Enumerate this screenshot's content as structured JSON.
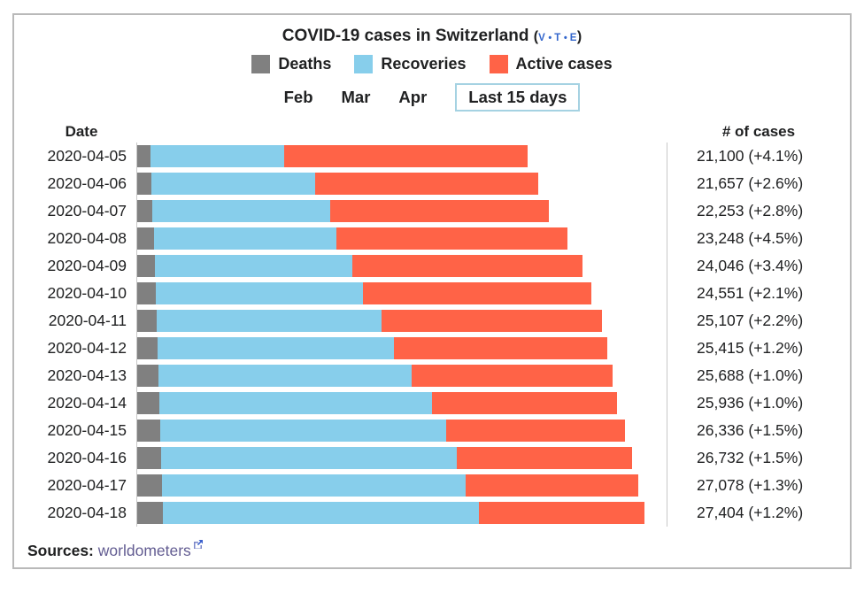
{
  "title": {
    "text": "COVID-19 cases in Switzerland",
    "vte_open": "(",
    "vte_close": ")",
    "vte": [
      "v",
      "t",
      "e"
    ]
  },
  "legend": [
    {
      "label": "Deaths",
      "color": "#808080"
    },
    {
      "label": "Recoveries",
      "color": "#87CEEB"
    },
    {
      "label": "Active cases",
      "color": "#FF6347"
    }
  ],
  "tabs": [
    {
      "label": "Feb",
      "selected": false
    },
    {
      "label": "Mar",
      "selected": false
    },
    {
      "label": "Apr",
      "selected": false
    },
    {
      "label": "Last 15 days",
      "selected": true
    }
  ],
  "columns": {
    "date": "Date",
    "cases": "# of cases"
  },
  "chart_data": {
    "type": "bar",
    "orientation": "horizontal",
    "stacked": true,
    "axis_max": 28600,
    "series_names": [
      "Deaths",
      "Recoveries",
      "Active cases"
    ],
    "colors": {
      "deaths": "#808080",
      "recoveries": "#87CEEB",
      "active": "#FF6347"
    },
    "rows": [
      {
        "date": "2020-04-05",
        "deaths": 715,
        "recoveries": 7220,
        "active": 13165,
        "total": 21100,
        "label": "21,100 (+4.1%)"
      },
      {
        "date": "2020-04-06",
        "deaths": 765,
        "recoveries": 8850,
        "active": 12042,
        "total": 21657,
        "label": "21,657 (+2.6%)"
      },
      {
        "date": "2020-04-07",
        "deaths": 821,
        "recoveries": 9600,
        "active": 11832,
        "total": 22253,
        "label": "22,253 (+2.8%)"
      },
      {
        "date": "2020-04-08",
        "deaths": 895,
        "recoveries": 9870,
        "active": 12483,
        "total": 23248,
        "label": "23,248 (+4.5%)"
      },
      {
        "date": "2020-04-09",
        "deaths": 948,
        "recoveries": 10670,
        "active": 12428,
        "total": 24046,
        "label": "24,046 (+3.4%)"
      },
      {
        "date": "2020-04-10",
        "deaths": 1002,
        "recoveries": 11190,
        "active": 12359,
        "total": 24551,
        "label": "24,551 (+2.1%)"
      },
      {
        "date": "2020-04-11",
        "deaths": 1036,
        "recoveries": 12160,
        "active": 11911,
        "total": 25107,
        "label": "25,107 (+2.2%)"
      },
      {
        "date": "2020-04-12",
        "deaths": 1106,
        "recoveries": 12760,
        "active": 11549,
        "total": 25415,
        "label": "25,415 (+1.2%)"
      },
      {
        "date": "2020-04-13",
        "deaths": 1138,
        "recoveries": 13690,
        "active": 10860,
        "total": 25688,
        "label": "25,688 (+1.0%)"
      },
      {
        "date": "2020-04-14",
        "deaths": 1174,
        "recoveries": 14750,
        "active": 10012,
        "total": 25936,
        "label": "25,936 (+1.0%)"
      },
      {
        "date": "2020-04-15",
        "deaths": 1239,
        "recoveries": 15450,
        "active": 9647,
        "total": 26336,
        "label": "26,336 (+1.5%)"
      },
      {
        "date": "2020-04-16",
        "deaths": 1281,
        "recoveries": 15980,
        "active": 9471,
        "total": 26732,
        "label": "26,732 (+1.5%)"
      },
      {
        "date": "2020-04-17",
        "deaths": 1327,
        "recoveries": 16420,
        "active": 9331,
        "total": 27078,
        "label": "27,078 (+1.3%)"
      },
      {
        "date": "2020-04-18",
        "deaths": 1368,
        "recoveries": 17090,
        "active": 8946,
        "total": 27404,
        "label": "27,404 (+1.2%)"
      }
    ]
  },
  "sources": {
    "label": "Sources:",
    "link": "worldometers"
  }
}
